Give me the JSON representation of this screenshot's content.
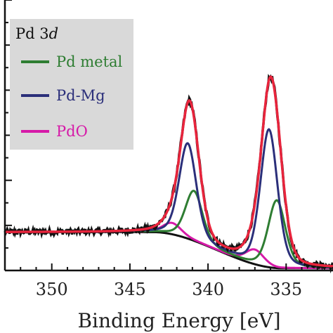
{
  "chart_data": {
    "type": "line",
    "xlabel": "Binding Energy [eV]",
    "ylabel": "",
    "xlim": [
      353,
      332
    ],
    "x_reversed": true,
    "xticks": [
      350,
      345,
      340,
      335
    ],
    "ylim": [
      0,
      1.2
    ],
    "grid": false,
    "legend": {
      "placement": "top-left",
      "title_main": "Pd 3",
      "title_italic": "d",
      "entries": [
        "Pd metal",
        "Pd-Mg",
        "PdO"
      ]
    },
    "colors": {
      "measured": "#111111",
      "fit_envelope": "#e8243c",
      "Pd metal": "#2e7d32",
      "Pd-Mg": "#2b2f7a",
      "PdO": "#d61aa8",
      "background": "#111111",
      "legend_box": "#d9d9d9"
    },
    "components": [
      {
        "name": "Pd-Mg",
        "centers_eV": [
          341.3,
          336.1
        ],
        "amplitudes": [
          0.42,
          0.61
        ],
        "fwhm_eV": 1.3
      },
      {
        "name": "Pd metal",
        "centers_eV": [
          340.9,
          335.6
        ],
        "amplitudes": [
          0.22,
          0.3
        ],
        "fwhm_eV": 1.3
      },
      {
        "name": "PdO",
        "centers_eV": [
          342.3,
          337.0
        ],
        "amplitudes": [
          0.05,
          0.065
        ],
        "fwhm_eV": 1.4
      }
    ],
    "shirley_background": {
      "low_eV_level": 0.01,
      "high_eV_level": 0.17,
      "transition_eV": [
        343.5,
        335.3
      ]
    },
    "peak_values": {
      "envelope_3d5_2": {
        "x": 336.0,
        "y": 1.09
      },
      "envelope_3d3_2": {
        "x": 341.3,
        "y": 0.79
      }
    }
  }
}
